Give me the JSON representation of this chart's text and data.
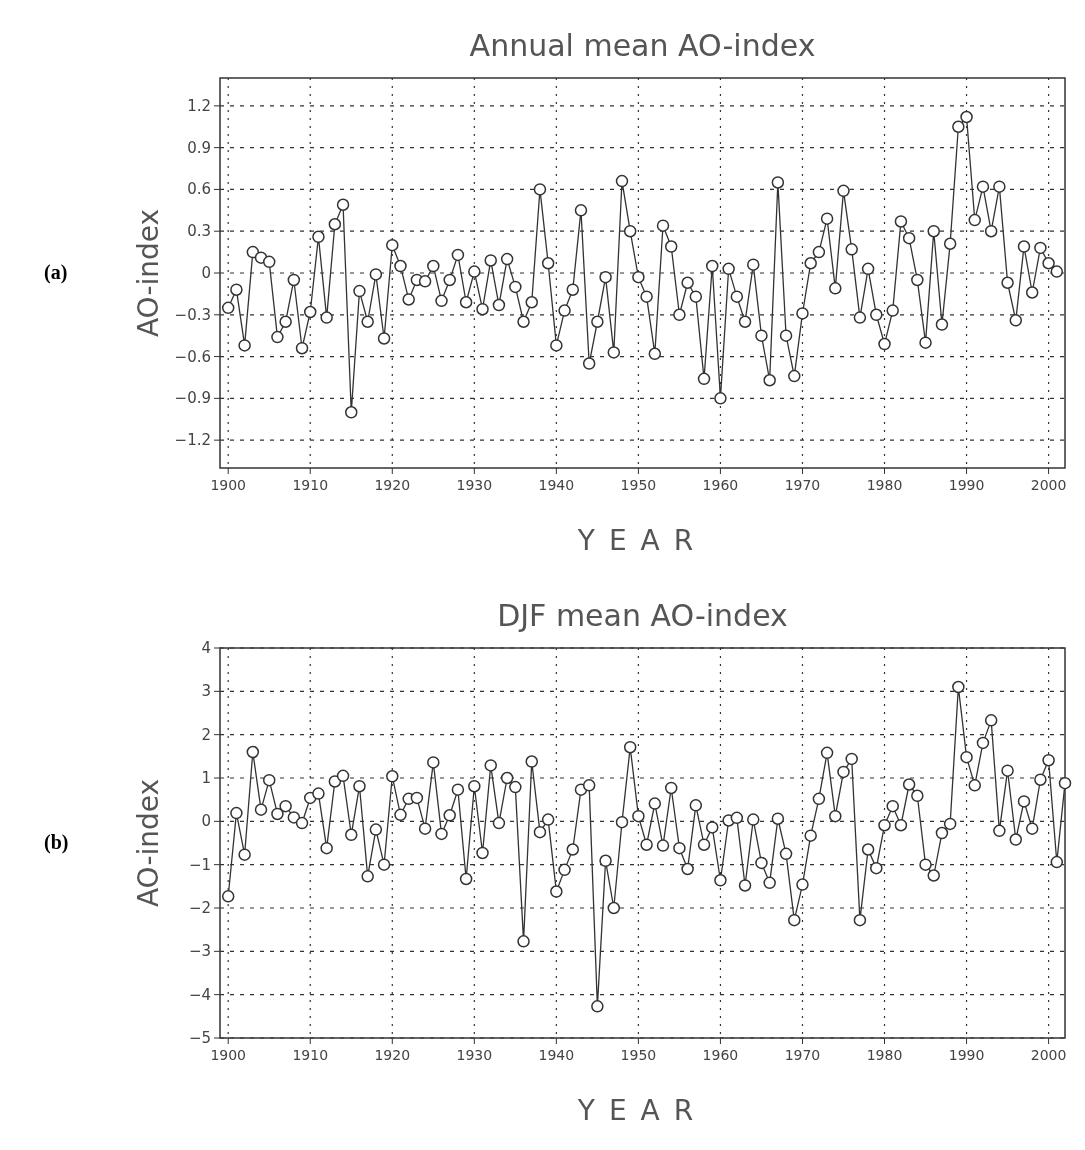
{
  "chart_data": [
    {
      "type": "line",
      "title": "Annual mean AO-index",
      "xlabel": "YEAR",
      "ylabel": "AO-index",
      "annotations": [
        "(a)"
      ],
      "x": [
        1900,
        1901,
        1902,
        1903,
        1904,
        1905,
        1906,
        1907,
        1908,
        1909,
        1910,
        1911,
        1912,
        1913,
        1914,
        1915,
        1916,
        1917,
        1918,
        1919,
        1920,
        1921,
        1922,
        1923,
        1924,
        1925,
        1926,
        1927,
        1928,
        1929,
        1930,
        1931,
        1932,
        1933,
        1934,
        1935,
        1936,
        1937,
        1938,
        1939,
        1940,
        1941,
        1942,
        1943,
        1944,
        1945,
        1946,
        1947,
        1948,
        1949,
        1950,
        1951,
        1952,
        1953,
        1954,
        1955,
        1956,
        1957,
        1958,
        1959,
        1960,
        1961,
        1962,
        1963,
        1964,
        1965,
        1966,
        1967,
        1968,
        1969,
        1970,
        1971,
        1972,
        1973,
        1974,
        1975,
        1976,
        1977,
        1978,
        1979,
        1980,
        1981,
        1982,
        1983,
        1984,
        1985,
        1986,
        1987,
        1988,
        1989,
        1990,
        1991,
        1992,
        1993,
        1994,
        1995,
        1996,
        1997,
        1998,
        1999,
        2000,
        2001
      ],
      "series": [
        {
          "color": "#333333",
          "values": [
            -0.25,
            -0.12,
            -0.52,
            0.15,
            0.11,
            0.08,
            -0.46,
            -0.35,
            -0.05,
            -0.54,
            -0.28,
            0.26,
            -0.32,
            0.35,
            0.49,
            -1.0,
            -0.13,
            -0.35,
            -0.01,
            -0.47,
            0.2,
            0.05,
            -0.19,
            -0.05,
            -0.06,
            0.05,
            -0.2,
            -0.05,
            0.13,
            -0.21,
            0.01,
            -0.26,
            0.09,
            -0.23,
            0.1,
            -0.1,
            -0.35,
            -0.21,
            0.6,
            0.07,
            -0.52,
            -0.27,
            -0.12,
            0.45,
            -0.65,
            -0.35,
            -0.03,
            -0.57,
            0.66,
            0.3,
            -0.03,
            -0.17,
            -0.58,
            0.34,
            0.19,
            -0.3,
            -0.07,
            -0.17,
            -0.76,
            0.05,
            -0.9,
            0.03,
            -0.17,
            -0.35,
            0.06,
            -0.45,
            -0.77,
            0.65,
            -0.45,
            -0.74,
            -0.29,
            0.07,
            0.15,
            0.39,
            -0.11,
            0.59,
            0.17,
            -0.32,
            0.03,
            -0.3,
            -0.51,
            -0.27,
            0.37,
            0.25,
            -0.05,
            -0.5,
            0.3,
            -0.37,
            0.21,
            1.05,
            1.12,
            0.38,
            0.62,
            0.3,
            0.62,
            -0.07,
            -0.34,
            0.19,
            -0.14,
            0.18,
            0.07,
            0.01
          ]
        }
      ],
      "xlim": [
        1899,
        2002
      ],
      "xticks": [
        1900,
        1910,
        1920,
        1930,
        1940,
        1950,
        1960,
        1970,
        1980,
        1990,
        2000
      ],
      "ylim": [
        -1.4,
        1.4
      ],
      "yticks": [
        -1.2,
        -0.9,
        -0.6,
        -0.3,
        0,
        0.3,
        0.6,
        0.9,
        1.2
      ],
      "grid": true,
      "marker": "circle",
      "line_style": "solid"
    },
    {
      "type": "line",
      "title": "DJF mean AO-index",
      "xlabel": "YEAR",
      "ylabel": "AO-index",
      "annotations": [
        "(b)"
      ],
      "x": [
        1900,
        1901,
        1902,
        1903,
        1904,
        1905,
        1906,
        1907,
        1908,
        1909,
        1910,
        1911,
        1912,
        1913,
        1914,
        1915,
        1916,
        1917,
        1918,
        1919,
        1920,
        1921,
        1922,
        1923,
        1924,
        1925,
        1926,
        1927,
        1928,
        1929,
        1930,
        1931,
        1932,
        1933,
        1934,
        1935,
        1936,
        1937,
        1938,
        1939,
        1940,
        1941,
        1942,
        1943,
        1944,
        1945,
        1946,
        1947,
        1948,
        1949,
        1950,
        1951,
        1952,
        1953,
        1954,
        1955,
        1956,
        1957,
        1958,
        1959,
        1960,
        1961,
        1962,
        1963,
        1964,
        1965,
        1966,
        1967,
        1968,
        1969,
        1970,
        1971,
        1972,
        1973,
        1974,
        1975,
        1976,
        1977,
        1978,
        1979,
        1980,
        1981,
        1982,
        1983,
        1984,
        1985,
        1986,
        1987,
        1988,
        1989,
        1990,
        1991,
        1992,
        1993,
        1994,
        1995,
        1996,
        1997,
        1998,
        1999,
        2000,
        2001,
        2002
      ],
      "series": [
        {
          "color": "#333333",
          "values": [
            -1.73,
            0.19,
            -0.77,
            1.6,
            0.27,
            0.95,
            0.17,
            0.35,
            0.09,
            -0.04,
            0.54,
            0.64,
            -0.62,
            0.92,
            1.05,
            -0.31,
            0.81,
            -1.27,
            -0.19,
            -1.0,
            1.04,
            0.15,
            0.52,
            0.54,
            -0.17,
            1.36,
            -0.29,
            0.14,
            0.73,
            -1.33,
            0.81,
            -0.73,
            1.29,
            -0.04,
            1.0,
            0.79,
            -2.77,
            1.38,
            -0.25,
            0.04,
            -1.62,
            -1.12,
            -0.65,
            0.73,
            0.83,
            -4.27,
            -0.91,
            -2.0,
            -0.02,
            1.71,
            0.12,
            -0.54,
            0.41,
            -0.56,
            0.77,
            -0.62,
            -1.1,
            0.37,
            -0.54,
            -0.14,
            -1.36,
            0.02,
            0.08,
            -1.48,
            0.04,
            -0.96,
            -1.42,
            0.06,
            -0.75,
            -2.28,
            -1.46,
            -0.33,
            0.52,
            1.58,
            0.12,
            1.14,
            1.44,
            -2.28,
            -0.65,
            -1.08,
            -0.09,
            0.35,
            -0.09,
            0.85,
            0.59,
            -1.0,
            -1.25,
            -0.27,
            -0.06,
            3.1,
            1.48,
            0.83,
            1.81,
            2.33,
            -0.22,
            1.17,
            -0.42,
            0.46,
            -0.17,
            0.96,
            1.41,
            -0.94,
            0.88
          ]
        }
      ],
      "xlim": [
        1899,
        2002
      ],
      "xticks": [
        1900,
        1910,
        1920,
        1930,
        1940,
        1950,
        1960,
        1970,
        1980,
        1990,
        2000
      ],
      "ylim": [
        -5,
        4
      ],
      "yticks": [
        -5,
        -4,
        -3,
        -2,
        -1,
        0,
        1,
        2,
        3,
        4
      ],
      "grid": true,
      "marker": "circle",
      "line_style": "solid"
    }
  ]
}
